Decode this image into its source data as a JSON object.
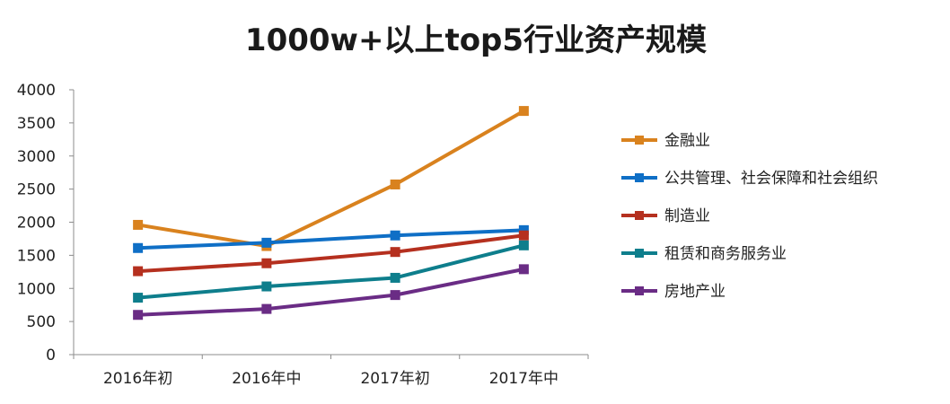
{
  "chart_data": {
    "type": "line",
    "title": "1000w+以上top5行业资产规模",
    "xlabel": "",
    "ylabel": "",
    "categories": [
      "2016年初",
      "2016年中",
      "2017年初",
      "2017年中"
    ],
    "ylim": [
      0,
      4000
    ],
    "yticks": [
      0,
      500,
      1000,
      1500,
      2000,
      2500,
      3000,
      3500,
      4000
    ],
    "grid": false,
    "legend_position": "right",
    "series": [
      {
        "name": "金融业",
        "color": "#D9821E",
        "values": [
          1960,
          1640,
          2570,
          3680
        ]
      },
      {
        "name": "公共管理、社会保障和社会组织",
        "color": "#0F6FC6",
        "values": [
          1610,
          1690,
          1800,
          1880
        ]
      },
      {
        "name": "制造业",
        "color": "#B5301F",
        "values": [
          1260,
          1380,
          1550,
          1800
        ]
      },
      {
        "name": "租赁和商务服务业",
        "color": "#0E7E8C",
        "values": [
          860,
          1030,
          1160,
          1650
        ]
      },
      {
        "name": "房地产业",
        "color": "#6A2C85",
        "values": [
          600,
          690,
          900,
          1290
        ]
      }
    ]
  }
}
